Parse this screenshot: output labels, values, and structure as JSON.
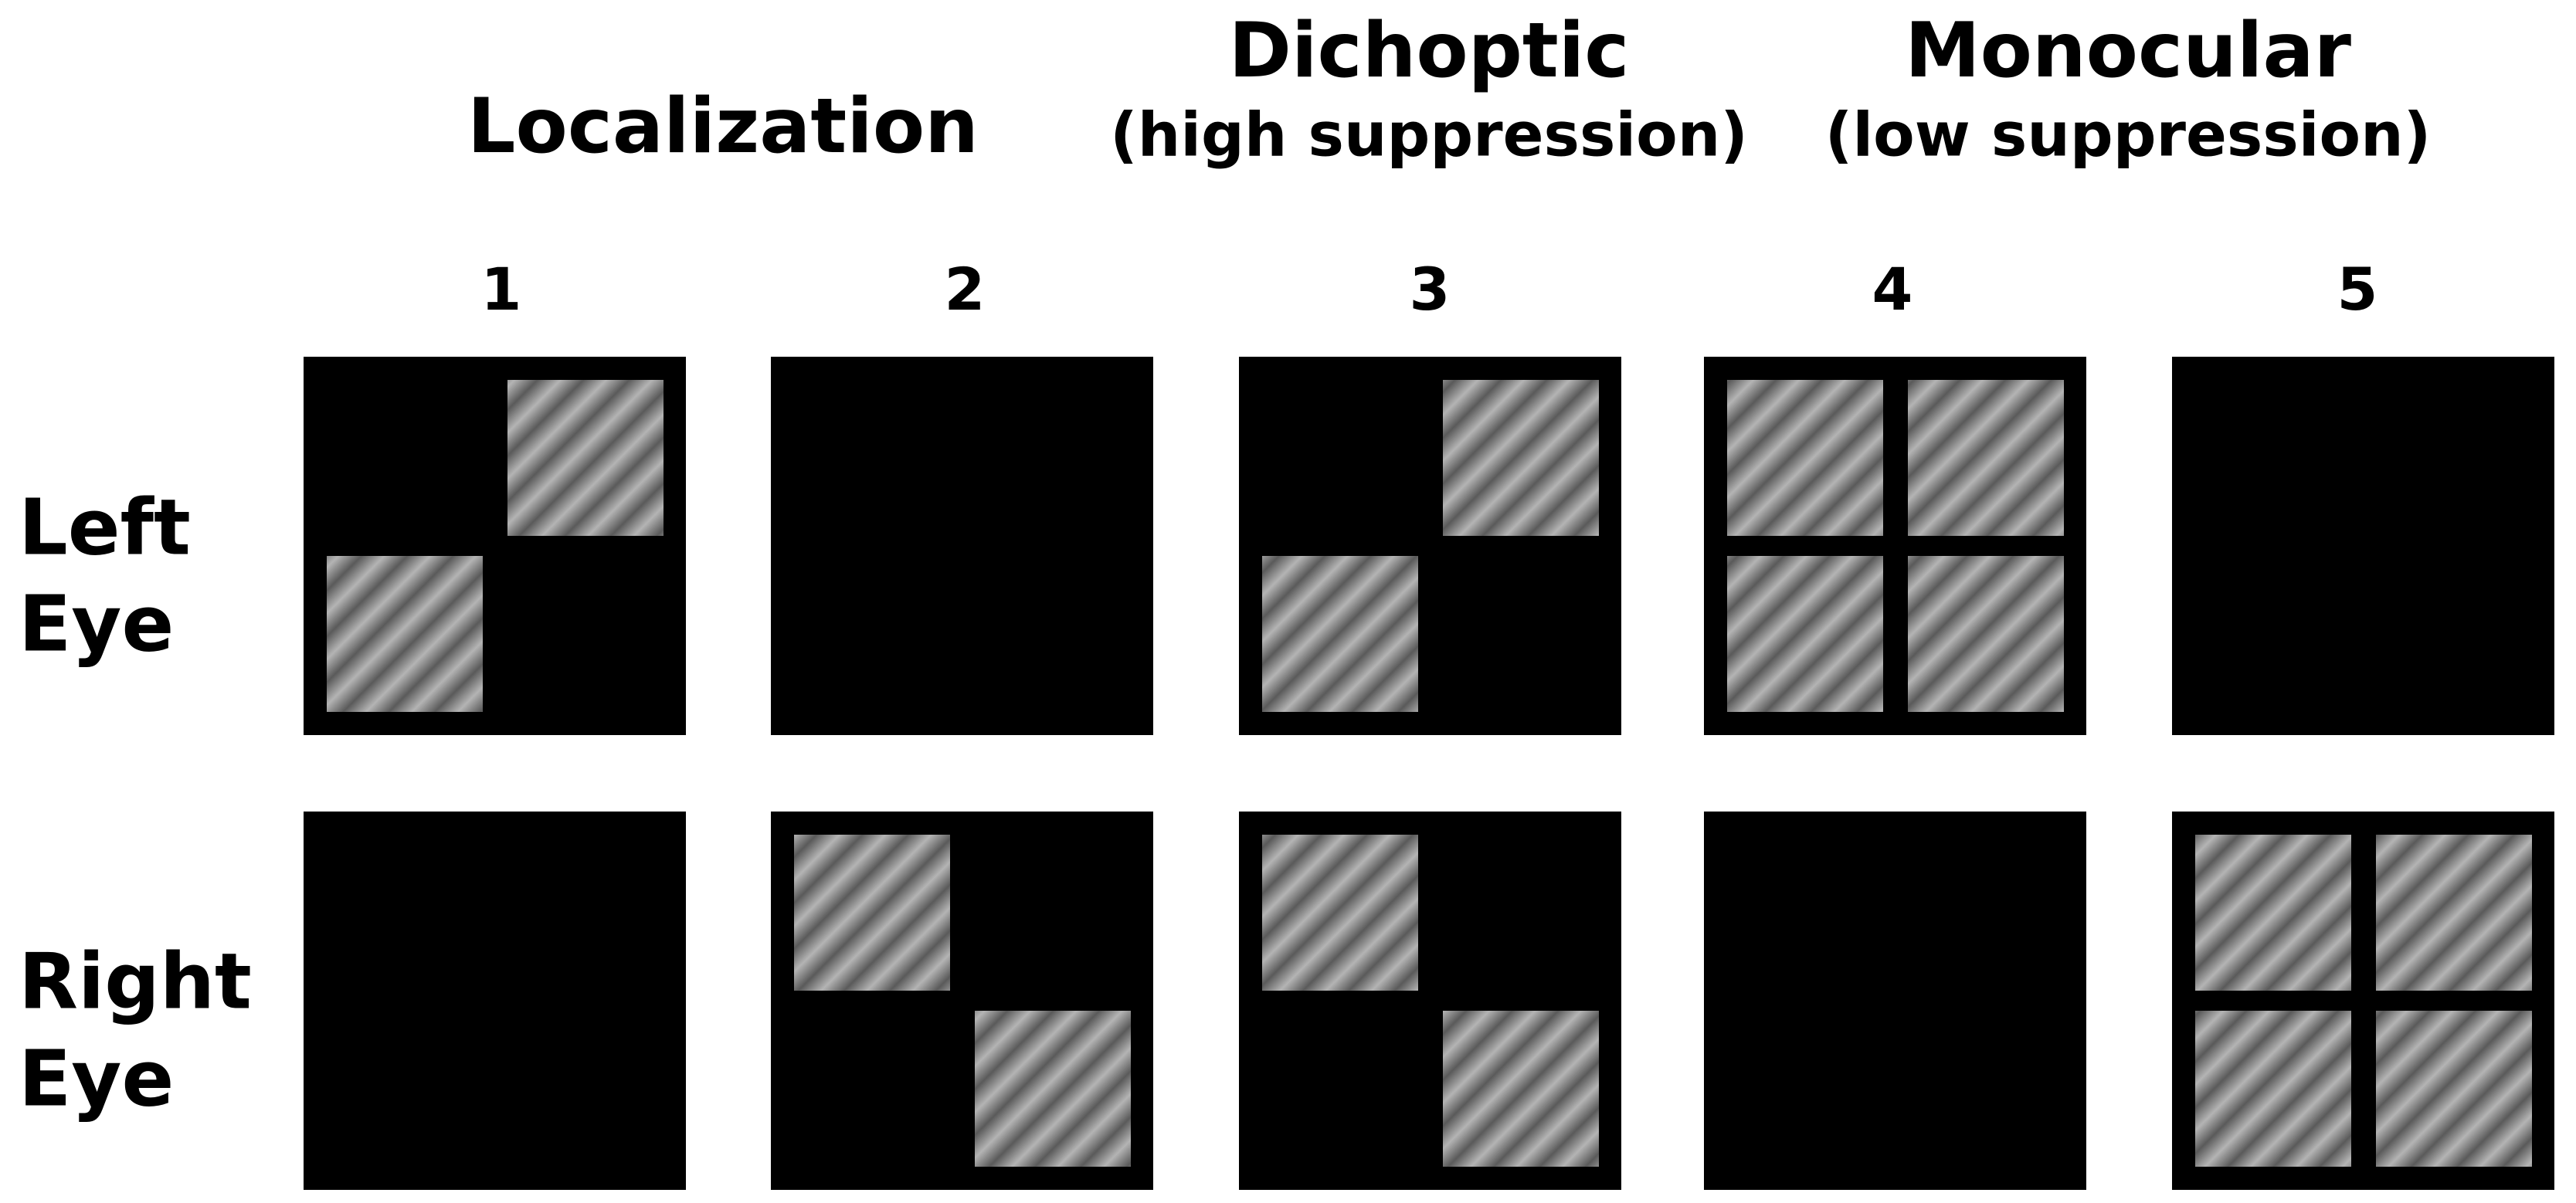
{
  "headers": [
    {
      "title": "Localization"
    },
    {
      "title": "Dichoptic",
      "subtitle": "(high suppression)"
    },
    {
      "title": "Monocular",
      "subtitle": "(low suppression)"
    }
  ],
  "columns": [
    "1",
    "2",
    "3",
    "4",
    "5"
  ],
  "rows": [
    {
      "line1": "Left",
      "line2": "Eye"
    },
    {
      "line1": "Right",
      "line2": "Eye"
    }
  ]
}
